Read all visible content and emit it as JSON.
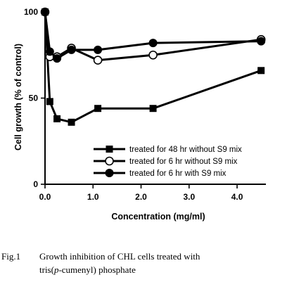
{
  "chart_data": {
    "type": "line",
    "xlabel": "Concentration (mg/ml)",
    "ylabel": "Cell growth (% of control)",
    "xlim": [
      0,
      4.6
    ],
    "ylim": [
      0,
      100
    ],
    "xticks": [
      0.0,
      1.0,
      2.0,
      3.0,
      4.0
    ],
    "xtick_labels": [
      "0.0",
      "1.0",
      "2.0",
      "3.0",
      "4.0"
    ],
    "yticks": [
      0,
      50,
      100
    ],
    "ytick_labels": [
      "0",
      "50",
      "100"
    ],
    "grid": false,
    "legend_position": "bottom-right",
    "series": [
      {
        "name": "treated for 48 hr without S9 mix",
        "marker": "filled-square",
        "x": [
          0,
          0.1,
          0.25,
          0.55,
          1.1,
          2.25,
          4.5
        ],
        "y": [
          100,
          48,
          38,
          36,
          44,
          44,
          66
        ]
      },
      {
        "name": "treated for 6 hr without S9 mix",
        "marker": "open-circle",
        "x": [
          0,
          0.1,
          0.25,
          0.55,
          1.1,
          2.25,
          4.5
        ],
        "y": [
          100,
          74,
          74,
          79,
          72,
          75,
          84
        ]
      },
      {
        "name": "treated for 6 hr with S9 mix",
        "marker": "filled-circle",
        "x": [
          0,
          0.1,
          0.25,
          0.55,
          1.1,
          2.25,
          4.5
        ],
        "y": [
          100,
          77,
          73,
          78,
          78,
          82,
          83
        ]
      }
    ]
  },
  "caption": {
    "label": "Fig.1",
    "line1": "Growth inhibition of CHL cells treated with",
    "line2_prefix": "tris(",
    "line2_italic": "p",
    "line2_suffix": "-cumenyl) phosphate"
  }
}
